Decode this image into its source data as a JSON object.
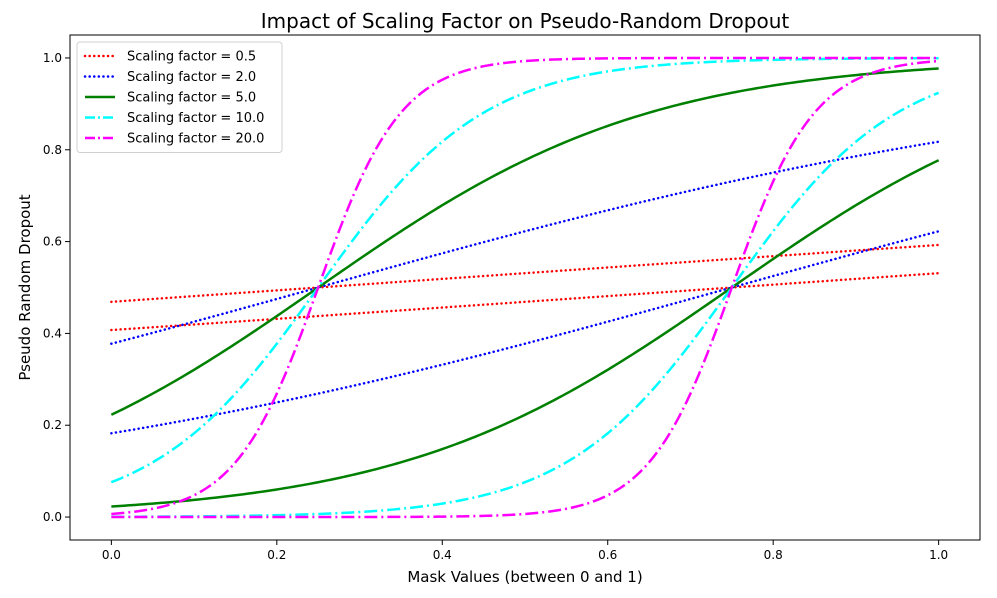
{
  "chart_data": {
    "type": "line",
    "title": "Impact of Scaling Factor on Pseudo-Random Dropout",
    "xlabel": "Mask Values (between 0 and 1)",
    "ylabel": "Pseudo Random Dropout",
    "xlim": [
      -0.05,
      1.05
    ],
    "ylim": [
      -0.05,
      1.05
    ],
    "xticks": [
      0.0,
      0.2,
      0.4,
      0.6,
      0.8,
      1.0
    ],
    "xtick_labels": [
      "0.0",
      "0.2",
      "0.4",
      "0.6",
      "0.8",
      "1.0"
    ],
    "yticks": [
      0.0,
      0.2,
      0.4,
      0.6,
      0.8,
      1.0
    ],
    "ytick_labels": [
      "0.0",
      "0.2",
      "0.4",
      "0.6",
      "0.8",
      "1.0"
    ],
    "legend_position": "upper-left",
    "curve_formula": "y = 1 / (1 + exp(-k * (x - c)))",
    "centers": [
      0.25,
      0.75
    ],
    "series": [
      {
        "name": "Scaling factor = 0.5",
        "k": 0.5,
        "color": "#ff0000",
        "style": "dotted"
      },
      {
        "name": "Scaling factor = 2.0",
        "k": 2.0,
        "color": "#0000ff",
        "style": "dotted"
      },
      {
        "name": "Scaling factor = 5.0",
        "k": 5.0,
        "color": "#008000",
        "style": "solid"
      },
      {
        "name": "Scaling factor = 10.0",
        "k": 10.0,
        "color": "#00ffff",
        "style": "dashdot"
      },
      {
        "name": "Scaling factor = 20.0",
        "k": 20.0,
        "color": "#ff00ff",
        "style": "dashdot"
      }
    ]
  }
}
